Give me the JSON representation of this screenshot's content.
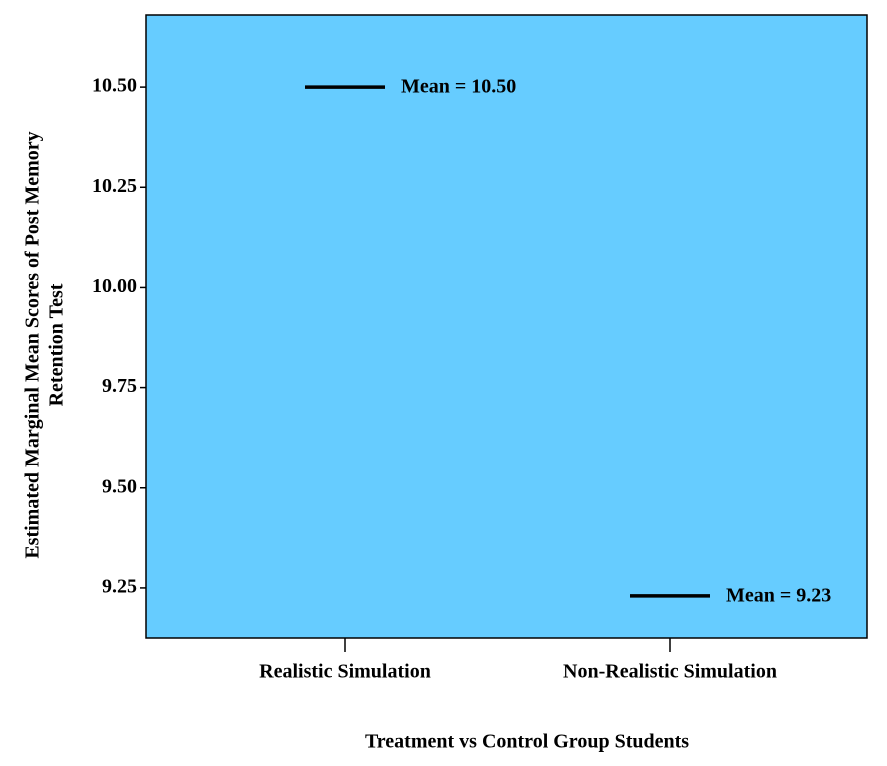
{
  "chart_data": {
    "type": "point",
    "xlabel": "Treatment vs Control Group Students",
    "ylabel": [
      "Estimated Marginal Mean Scores of Post Memory",
      "Retention Test"
    ],
    "categories": [
      "Realistic Simulation",
      "Non-Realistic Simulation"
    ],
    "values": [
      10.5,
      9.23
    ],
    "value_labels": [
      "Mean = 10.50",
      "Mean = 9.23"
    ],
    "color": "#000000",
    "background": "#66ccff",
    "ylim": [
      9.125,
      10.68
    ],
    "yticks": [
      {
        "value": 9.25,
        "label": "9.25"
      },
      {
        "value": 9.5,
        "label": "9.50"
      },
      {
        "value": 9.75,
        "label": "9.75"
      },
      {
        "value": 10,
        "label": "10.00"
      },
      {
        "value": 10.25,
        "label": "10.25"
      },
      {
        "value": 10.5,
        "label": "10.50"
      }
    ]
  }
}
